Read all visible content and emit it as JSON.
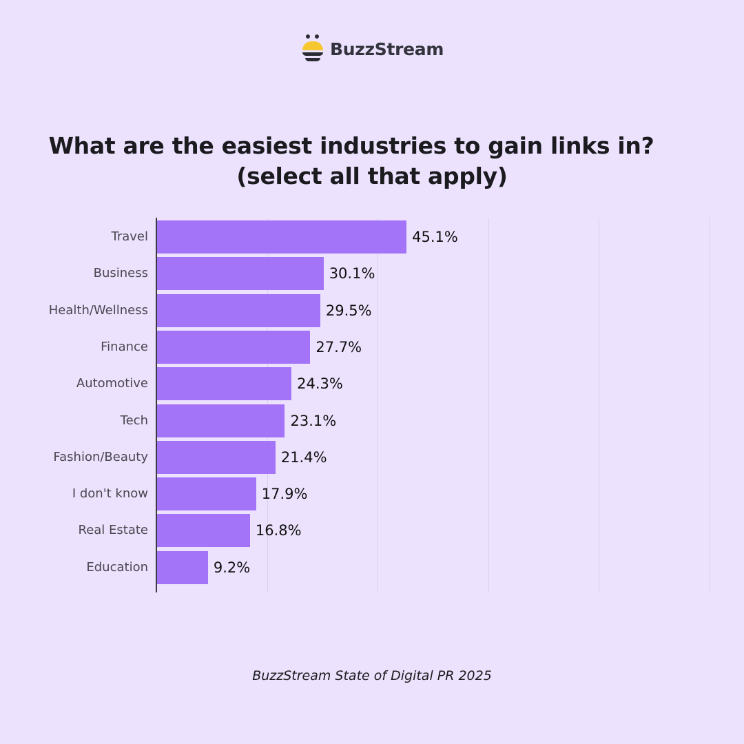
{
  "brand": {
    "name": "BuzzStream",
    "logo_icon": "bee-icon"
  },
  "title_line1": "What are the easiest industries to gain links in?",
  "title_line2": "(select all that apply)",
  "source": "BuzzStream State of Digital PR 2025",
  "colors": {
    "background": "#ece2fd",
    "bar": "#a374f8",
    "axis": "#3a3a40",
    "grid": "#d9d0ea"
  },
  "chart_data": {
    "type": "bar",
    "orientation": "horizontal",
    "title": "What are the easiest industries to gain links in? (select all that apply)",
    "categories": [
      "Travel",
      "Business",
      "Health/Wellness",
      "Finance",
      "Automotive",
      "Tech",
      "Fashion/Beauty",
      "I don't know",
      "Real Estate",
      "Education"
    ],
    "values": [
      45.1,
      30.1,
      29.5,
      27.7,
      24.3,
      23.1,
      21.4,
      17.9,
      16.8,
      9.2
    ],
    "value_labels": [
      "45.1%",
      "30.1%",
      "29.5%",
      "27.7%",
      "24.3%",
      "23.1%",
      "21.4%",
      "17.9%",
      "16.8%",
      "9.2%"
    ],
    "xlabel": "",
    "ylabel": "",
    "xlim": [
      0,
      100
    ],
    "gridlines": [
      20,
      40,
      60,
      80,
      100
    ],
    "grid": true,
    "legend": "none"
  }
}
